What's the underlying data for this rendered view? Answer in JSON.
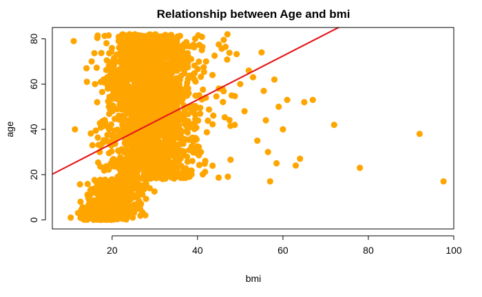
{
  "chart_data": {
    "type": "scatter",
    "title": "Relationship between Age and bmi",
    "xlabel": "bmi",
    "ylabel": "age",
    "xlim": [
      6,
      100
    ],
    "ylim": [
      -4,
      85
    ],
    "xticks": [
      20,
      40,
      60,
      80,
      100
    ],
    "yticks": [
      0,
      20,
      40,
      60,
      80
    ],
    "grid": false,
    "legend": "none",
    "point_color": "#FFA500",
    "line_color": "#E41A1C",
    "points": [
      {
        "x": 10.3,
        "y": 1
      },
      {
        "x": 11.0,
        "y": 79
      },
      {
        "x": 11.3,
        "y": 40
      },
      {
        "x": 12.6,
        "y": 8
      },
      {
        "x": 13.5,
        "y": 4
      },
      {
        "x": 14.0,
        "y": 67
      },
      {
        "x": 14.1,
        "y": 61
      },
      {
        "x": 15.2,
        "y": 70
      },
      {
        "x": 15.4,
        "y": 33
      },
      {
        "x": 16.0,
        "y": 60
      },
      {
        "x": 16.5,
        "y": 52
      },
      {
        "x": 17.1,
        "y": 30
      },
      {
        "x": 18.0,
        "y": 62
      },
      {
        "x": 19.0,
        "y": 58
      },
      {
        "x": 41.0,
        "y": 75
      },
      {
        "x": 42.0,
        "y": 70
      },
      {
        "x": 43.5,
        "y": 64
      },
      {
        "x": 45.0,
        "y": 58
      },
      {
        "x": 47.0,
        "y": 82
      },
      {
        "x": 48.0,
        "y": 55
      },
      {
        "x": 50.0,
        "y": 60
      },
      {
        "x": 51.0,
        "y": 48
      },
      {
        "x": 52.0,
        "y": 66
      },
      {
        "x": 53.0,
        "y": 63
      },
      {
        "x": 54.0,
        "y": 35
      },
      {
        "x": 55.0,
        "y": 74
      },
      {
        "x": 55.5,
        "y": 57
      },
      {
        "x": 56.0,
        "y": 44
      },
      {
        "x": 56.5,
        "y": 30
      },
      {
        "x": 57.0,
        "y": 17
      },
      {
        "x": 58.0,
        "y": 62
      },
      {
        "x": 58.5,
        "y": 25
      },
      {
        "x": 59.0,
        "y": 50
      },
      {
        "x": 60.0,
        "y": 40
      },
      {
        "x": 61.0,
        "y": 53
      },
      {
        "x": 63.0,
        "y": 24
      },
      {
        "x": 64.0,
        "y": 27
      },
      {
        "x": 65.0,
        "y": 52
      },
      {
        "x": 67.0,
        "y": 53
      },
      {
        "x": 72.0,
        "y": 42
      },
      {
        "x": 78.0,
        "y": 23
      },
      {
        "x": 92.0,
        "y": 38
      },
      {
        "x": 97.6,
        "y": 17
      }
    ],
    "regression_line": {
      "intercept": 14.4,
      "slope": 0.967
    }
  }
}
